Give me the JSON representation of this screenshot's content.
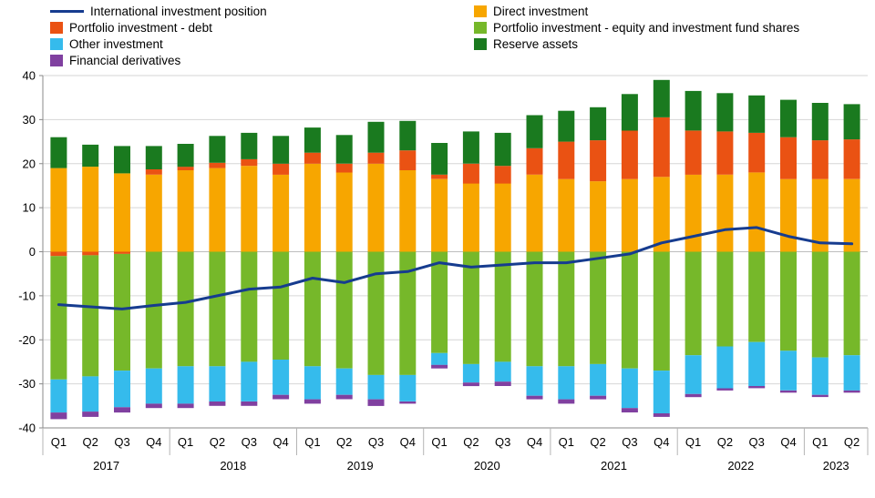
{
  "legend": {
    "col1": [
      {
        "label": "International investment position",
        "type": "line",
        "color": "#163C8F"
      },
      {
        "label": "Portfolio investment - debt",
        "type": "box",
        "color": "#EA5213"
      },
      {
        "label": "Other investment",
        "type": "box",
        "color": "#35BBEC"
      },
      {
        "label": "Financial derivatives",
        "type": "box",
        "color": "#8040A0"
      }
    ],
    "col2": [
      {
        "label": "Direct investment",
        "type": "box",
        "color": "#F7A600"
      },
      {
        "label": "Portfolio investment - equity and investment fund shares",
        "type": "box",
        "color": "#76B82A"
      },
      {
        "label": "Reserve assets",
        "type": "box",
        "color": "#1A7A1F"
      }
    ]
  },
  "chart_data": {
    "type": "bar",
    "subtype": "stacked-bars-with-line",
    "title": "",
    "xlabel": "",
    "ylabel": "",
    "ylim": [
      -40,
      40
    ],
    "ytick": 10,
    "grid": true,
    "legend_position": "top",
    "categories": [
      "Q1",
      "Q2",
      "Q3",
      "Q4",
      "Q1",
      "Q2",
      "Q3",
      "Q4",
      "Q1",
      "Q2",
      "Q3",
      "Q4",
      "Q1",
      "Q2",
      "Q3",
      "Q4",
      "Q1",
      "Q2",
      "Q3",
      "Q4",
      "Q1",
      "Q2",
      "Q3",
      "Q4",
      "Q1",
      "Q2"
    ],
    "years": [
      {
        "label": "2017",
        "count": 4
      },
      {
        "label": "2018",
        "count": 4
      },
      {
        "label": "2019",
        "count": 4
      },
      {
        "label": "2020",
        "count": 4
      },
      {
        "label": "2021",
        "count": 4
      },
      {
        "label": "2022",
        "count": 4
      },
      {
        "label": "2023",
        "count": 2
      }
    ],
    "series": [
      {
        "name": "Direct investment",
        "color": "#F7A600",
        "values": [
          19,
          19.3,
          17.8,
          17.5,
          18.5,
          19,
          19.5,
          17.5,
          20,
          18,
          20,
          18.5,
          16.5,
          15.5,
          15.5,
          17.5,
          16.5,
          16,
          16.5,
          17,
          17.5,
          17.5,
          18,
          16.5,
          16.5,
          16.5
        ]
      },
      {
        "name": "Portfolio investment - debt",
        "color": "#EA5213",
        "values": [
          -1,
          -0.8,
          -0.5,
          1.2,
          0.8,
          1.2,
          1.5,
          2.5,
          2.5,
          2,
          2.5,
          4.5,
          1,
          4.5,
          4,
          6,
          8.5,
          9.3,
          11,
          13.5,
          10,
          9.8,
          9,
          9.5,
          8.8,
          9
        ]
      },
      {
        "name": "Reserve assets",
        "color": "#1A7A1F",
        "values": [
          7,
          5,
          6.2,
          5.3,
          5.2,
          6.1,
          6,
          6.3,
          5.7,
          6.5,
          7,
          6.7,
          7.2,
          7.3,
          7.5,
          7.5,
          7,
          7.5,
          8.3,
          8.5,
          9,
          8.7,
          8.5,
          8.5,
          8.5,
          8
        ]
      },
      {
        "name": "Portfolio investment - equity and investment fund shares",
        "color": "#76B82A",
        "values": [
          -28,
          -27.5,
          -26.5,
          -26.5,
          -26,
          -26,
          -25,
          -24.5,
          -26,
          -26.5,
          -28,
          -28,
          -23,
          -25.5,
          -25,
          -26,
          -26,
          -25.5,
          -26.5,
          -27,
          -23.5,
          -21.5,
          -20.5,
          -22.5,
          -24,
          -23.5
        ]
      },
      {
        "name": "Other investment",
        "color": "#35BBEC",
        "values": [
          -7.5,
          -8,
          -8.3,
          -8,
          -8.5,
          -8,
          -9,
          -8,
          -7.5,
          -6,
          -5.5,
          -6,
          -2.7,
          -4.2,
          -4.5,
          -6.7,
          -7.5,
          -7.2,
          -9,
          -9.7,
          -8.8,
          -9.5,
          -10,
          -9,
          -8.5,
          -8
        ]
      },
      {
        "name": "Financial derivatives",
        "color": "#8040A0",
        "values": [
          -1.5,
          -1.2,
          -1.2,
          -1,
          -1,
          -1,
          -1,
          -1,
          -1,
          -1,
          -1.5,
          -0.5,
          -0.8,
          -0.8,
          -1,
          -0.8,
          -1,
          -0.8,
          -1,
          -0.8,
          -0.7,
          -0.5,
          -0.5,
          -0.5,
          -0.5,
          -0.5
        ]
      }
    ],
    "line": {
      "name": "International investment position",
      "color": "#163C8F",
      "values": [
        -12,
        -12.5,
        -13,
        -12.2,
        -11.5,
        -10,
        -8.5,
        -8,
        -6,
        -7,
        -5,
        -4.5,
        -2.5,
        -3.5,
        -3,
        -2.5,
        -2.5,
        -1.5,
        -0.5,
        2,
        3.5,
        5,
        5.5,
        3.5,
        2,
        1.8
      ]
    }
  }
}
